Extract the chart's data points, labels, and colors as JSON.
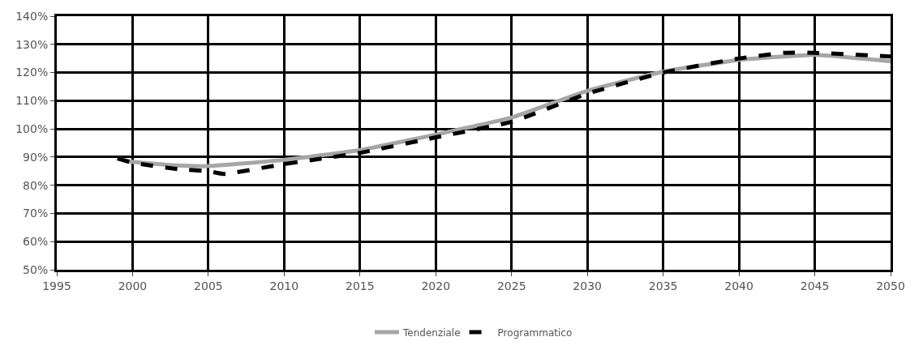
{
  "chart_data": {
    "type": "line",
    "series": [
      {
        "name": "Tendenziale",
        "color": "#a6a6a6",
        "line_style": "solid",
        "x": [
          1999,
          2000,
          2003,
          2005,
          2010,
          2015,
          2020,
          2025,
          2030,
          2035,
          2040,
          2045,
          2050
        ],
        "values": [
          89.5,
          88.3,
          87,
          86.8,
          89,
          92.5,
          98,
          104,
          113.5,
          120.3,
          124.5,
          126.3,
          124
        ]
      },
      {
        "name": "Programmatico",
        "color": "#000000",
        "line_style": "dashed",
        "x": [
          1999,
          2000,
          2003,
          2005,
          2006,
          2010,
          2015,
          2020,
          2025,
          2030,
          2035,
          2040,
          2043,
          2045,
          2050
        ],
        "values": [
          89.5,
          88,
          85.7,
          85,
          84,
          87.5,
          91.5,
          97,
          102.5,
          112.5,
          120,
          125,
          127,
          127,
          125.7
        ]
      }
    ],
    "xlim": [
      1995,
      2050
    ],
    "xticks": [
      1995,
      2000,
      2005,
      2010,
      2015,
      2020,
      2025,
      2030,
      2035,
      2040,
      2045,
      2050
    ],
    "ylim": [
      50,
      140
    ],
    "yticks": [
      {
        "value": 50,
        "label": "50%"
      },
      {
        "value": 60,
        "label": "60%"
      },
      {
        "value": 70,
        "label": "70%"
      },
      {
        "value": 80,
        "label": "80%"
      },
      {
        "value": 90,
        "label": "90%"
      },
      {
        "value": 100,
        "label": "100%"
      },
      {
        "value": 110,
        "label": "110%"
      },
      {
        "value": 120,
        "label": "120%"
      },
      {
        "value": 130,
        "label": "130%"
      },
      {
        "value": 140,
        "label": "140%"
      }
    ],
    "grid": true,
    "legend": "bottom",
    "marker": "none"
  }
}
